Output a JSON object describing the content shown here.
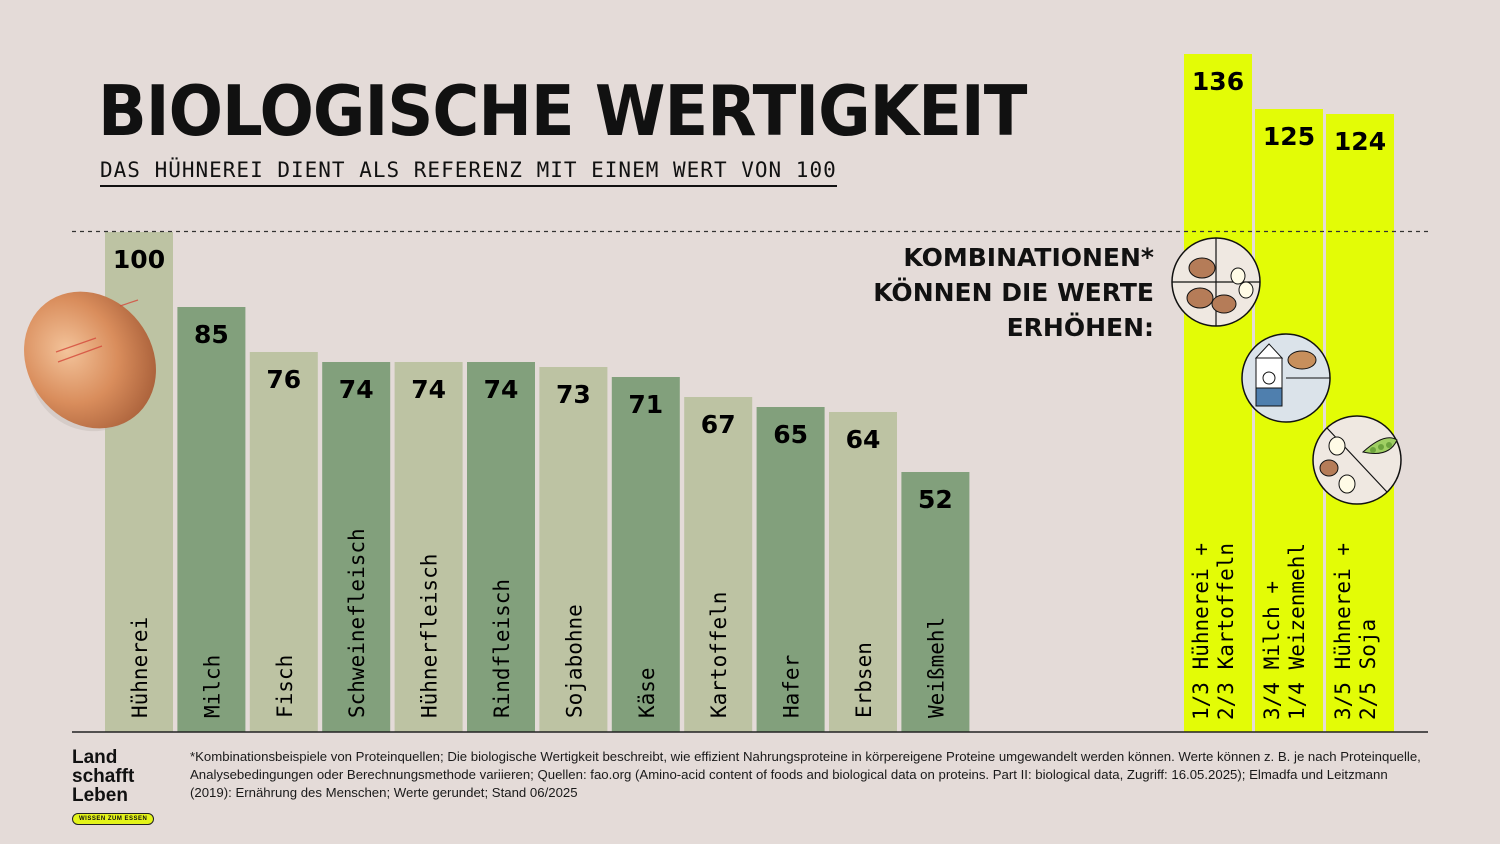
{
  "header": {
    "title": "BIOLOGISCHE WERTIGKEIT",
    "subtitle": "DAS HÜHNEREI DIENT ALS REFERENZ MIT EINEM WERT VON 100"
  },
  "combinations_note": "KOMBINATIONEN*\nKÖNNEN DIE WERTE\nERHÖHEN:",
  "footnote": "*Kombinationsbeispiele von Proteinquellen; Die biologische Wertigkeit beschreibt, wie effizient Nahrungsproteine in körpereigene Proteine umgewandelt werden können. Werte können z. B. je nach Proteinquelle, Analysebedingungen oder Berechnungsmethode variieren; Quellen: fao.org (Amino-acid content of foods and biological data on proteins. Part II: biological data, Zugriff: 16.05.2025); Elmadfa und Leitzmann (2019): Ernährung des Menschen; Werte gerundet; Stand 06/2025",
  "logo": {
    "lines": [
      "Land",
      "schafft",
      "Leben"
    ],
    "tagline": "WISSEN ZUM ESSEN"
  },
  "colors": {
    "light_green": "#bdc3a3",
    "dark_green": "#82a07c",
    "highlight_yellow": "#e3fc06",
    "background": "#e4dbd8"
  },
  "chart_data": {
    "type": "bar",
    "reference_value": 100,
    "ylim": [
      0,
      140
    ],
    "grid": false,
    "categories": [
      "Hühnerei",
      "Milch",
      "Fisch",
      "Schweinefleisch",
      "Hühnerfleisch",
      "Rindfleisch",
      "Sojabohne",
      "Käse",
      "Kartoffeln",
      "Hafer",
      "Erbsen",
      "Weißmehl"
    ],
    "values": [
      100,
      85,
      76,
      74,
      74,
      74,
      73,
      71,
      67,
      65,
      64,
      52
    ],
    "combinations": {
      "categories": [
        [
          "1/3 Hühnerei +",
          "2/3 Kartoffeln"
        ],
        [
          "3/4 Milch +",
          "1/4 Weizenmehl"
        ],
        [
          "3/5 Hühnerei +",
          "2/5 Soja"
        ]
      ],
      "values": [
        136,
        125,
        124
      ]
    }
  }
}
